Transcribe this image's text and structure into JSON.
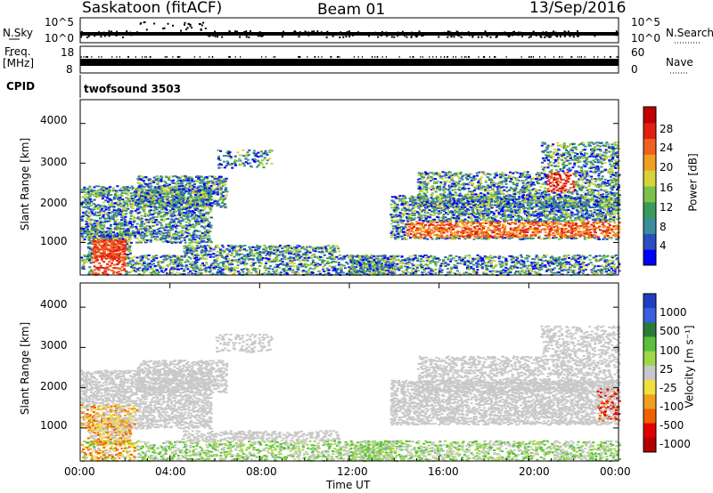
{
  "header": {
    "station": "Saskatoon (fitACF)",
    "beam": "Beam 01",
    "date": "13/Sep/2016"
  },
  "left_labels": {
    "nsky": "N.Sky",
    "freq_line1": "Freq.",
    "freq_line2": "[MHz]",
    "cpid": "CPID"
  },
  "right_labels": {
    "nsearch": "N.Search",
    "nave": "Nave"
  },
  "cpid_text": "twofsound 3503",
  "colors": {
    "power": [
      "#0000ff",
      "#2a4fc0",
      "#3c8c9a",
      "#3a9a5a",
      "#7cc24a",
      "#d8d23a",
      "#f0a020",
      "#f06020",
      "#e02010",
      "#c00000"
    ],
    "velocity": [
      "#1f3fbf",
      "#3a5fe0",
      "#2a7a3a",
      "#5ac03a",
      "#9ed84a",
      "#c8c8c8",
      "#f0e040",
      "#f0a020",
      "#f06000",
      "#e00000",
      "#b00000"
    ]
  },
  "chart_data": [
    {
      "type": "line",
      "panel": "N.Sky / N.Search",
      "left_ticks": [
        "10^5",
        "10^0"
      ],
      "right_ticks": [
        "10^5",
        "10^0"
      ]
    },
    {
      "type": "bar",
      "panel": "Freq. / Nave",
      "left_ticks": [
        "18",
        "8"
      ],
      "right_ticks": [
        "60",
        "0"
      ]
    },
    {
      "type": "heatmap",
      "panel": "Power",
      "ylabel": "Slant Range [km]",
      "yticks": [
        "4000",
        "3000",
        "2000",
        "1000"
      ],
      "colorbar_label": "Power [dB]",
      "colorbar_ticks": [
        "28",
        "24",
        "20",
        "16",
        "12",
        "8",
        "4"
      ],
      "xlim": [
        0,
        24
      ],
      "ylim": [
        180,
        4600
      ]
    },
    {
      "type": "heatmap",
      "panel": "Velocity",
      "ylabel": "Slant Range [km]",
      "yticks": [
        "4000",
        "3000",
        "2000",
        "1000"
      ],
      "colorbar_label": "Velocity [m s⁻¹]",
      "colorbar_ticks": [
        "1000",
        "500",
        "100",
        "25",
        "-25",
        "-100",
        "-500",
        "-1000"
      ],
      "xlim": [
        0,
        24
      ],
      "ylim": [
        180,
        4600
      ]
    }
  ],
  "xaxis": {
    "ticks": [
      "00:00",
      "04:00",
      "08:00",
      "12:00",
      "16:00",
      "20:00",
      "00:00"
    ],
    "label": "Time UT"
  }
}
